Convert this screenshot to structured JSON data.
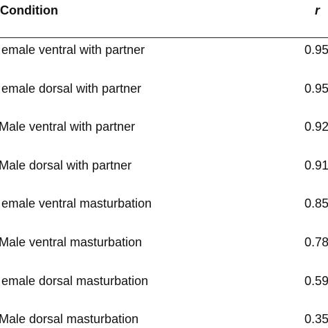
{
  "table": {
    "header": [
      "Condition",
      "r"
    ],
    "rows": [
      [
        "emale ventral with partner",
        "0.95"
      ],
      [
        "emale dorsal with partner",
        "0.95"
      ],
      [
        "Male ventral with partner",
        "0.92"
      ],
      [
        "Male dorsal with partner",
        "0.91"
      ],
      [
        "emale ventral masturbation",
        "0.85"
      ],
      [
        "Male ventral masturbation",
        "0.78"
      ],
      [
        "emale dorsal masturbation",
        "0.59"
      ],
      [
        "Male dorsal masturbation",
        "0.35"
      ]
    ]
  }
}
